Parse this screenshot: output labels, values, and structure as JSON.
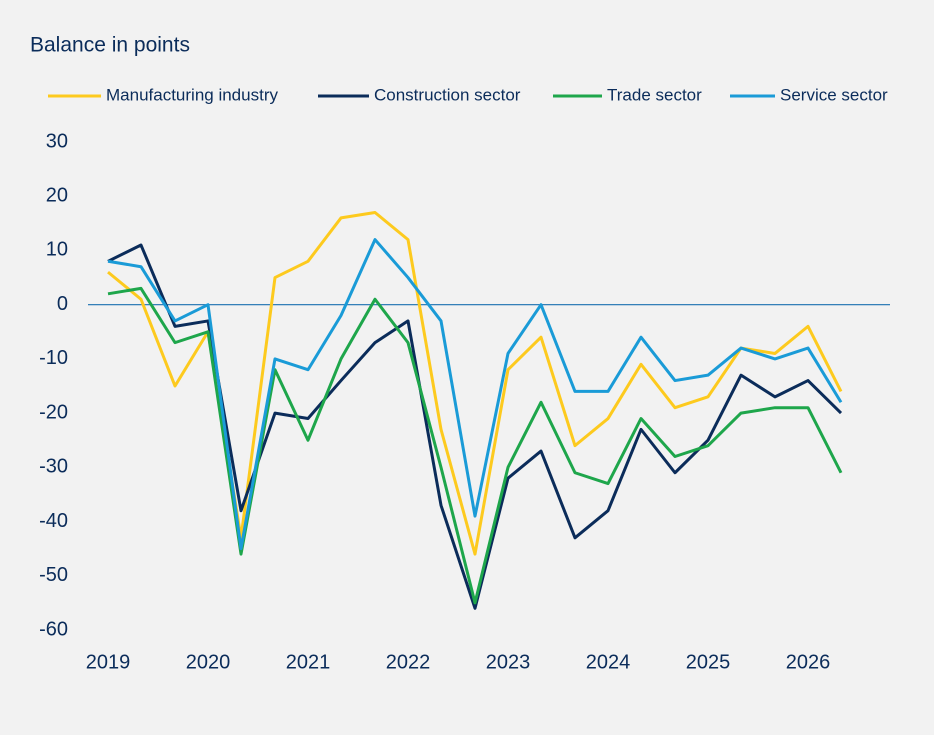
{
  "chart_data": {
    "type": "line",
    "title": "Balance in points",
    "x": [
      2019,
      2019.33,
      2019.67,
      2020,
      2020.33,
      2020.67,
      2021,
      2021.33,
      2021.67,
      2022,
      2022.33,
      2022.67,
      2023,
      2023.33,
      2023.67,
      2024,
      2024.33,
      2024.67,
      2025,
      2025.33,
      2025.67,
      2026,
      2026.33
    ],
    "series": [
      {
        "name": "Manufacturing industry",
        "color": "#fdca1e",
        "values": [
          6,
          1,
          -15,
          -5,
          -43,
          5,
          8,
          16,
          17,
          12,
          -23,
          -46,
          -12,
          -6,
          -26,
          -21,
          -11,
          -19,
          -17,
          -8,
          -9,
          -4,
          -16
        ]
      },
      {
        "name": "Construction sector",
        "color": "#0b2c5a",
        "values": [
          8,
          11,
          -4,
          -3,
          -38,
          -20,
          -21,
          -14,
          -7,
          -3,
          -37,
          -56,
          -32,
          -27,
          -43,
          -38,
          -23,
          -31,
          -25,
          -13,
          -17,
          -14,
          -20
        ]
      },
      {
        "name": "Trade sector",
        "color": "#1ea64b",
        "values": [
          2,
          3,
          -7,
          -5,
          -46,
          -12,
          -25,
          -10,
          1,
          -7,
          -30,
          -55,
          -30,
          -18,
          -31,
          -33,
          -21,
          -28,
          -26,
          -20,
          -19,
          -19,
          -31
        ]
      },
      {
        "name": "Service sector",
        "color": "#1a9bd7",
        "values": [
          8,
          7,
          -3,
          0,
          -45,
          -10,
          -12,
          -2,
          12,
          5,
          -3,
          -39,
          -9,
          0,
          -16,
          -16,
          -6,
          -14,
          -13,
          -8,
          -10,
          -8,
          -18
        ]
      }
    ],
    "xlim": [
      2018.8,
      2026.82
    ],
    "xticks": [
      2019,
      2020,
      2021,
      2022,
      2023,
      2024,
      2025,
      2026
    ],
    "ylim": [
      -60,
      30
    ],
    "yticks": [
      -60,
      -50,
      -40,
      -30,
      -20,
      -10,
      0,
      10,
      20,
      30
    ],
    "grid": false,
    "legend": "top"
  }
}
